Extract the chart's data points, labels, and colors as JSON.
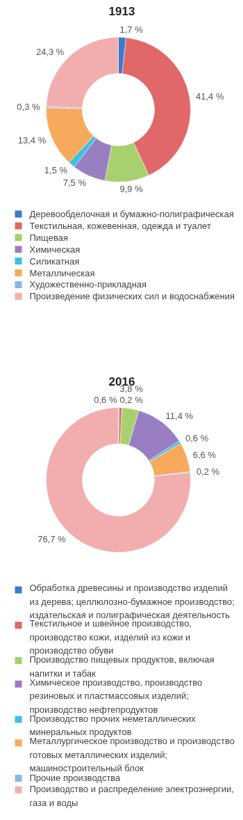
{
  "chart_data": [
    {
      "type": "donut",
      "title": "1913",
      "categories": [
        "Деревообделочная и бумажно-полиграфическая",
        "Текстильная, кожевенная, одежда и туалет",
        "Пищевая",
        "Химическая",
        "Силикатная",
        "Металлическая",
        "Художественно-прикладная",
        "Произведение физических сил и водоснабжения"
      ],
      "values": [
        1.7,
        41.4,
        9.9,
        7.5,
        1.5,
        13.4,
        0.3,
        24.3
      ],
      "value_labels": [
        "1,7 %",
        "41,4 %",
        "9,9 %",
        "7,5 %",
        "1,5 %",
        "13,4 %",
        "0,3 %",
        "24,3 %"
      ],
      "colors": [
        "#3a7cc8",
        "#e06868",
        "#a9d06e",
        "#9a7ec2",
        "#3ec0e6",
        "#f7a95c",
        "#8fb4e3",
        "#f2aeae"
      ],
      "legend": "bottom"
    },
    {
      "type": "donut",
      "title": "2016",
      "categories": [
        "Обработка древесины и производство изделий из дерева; целлюлозно-бумажное производство; издательская и полиграфическая деятельность",
        "Текстильное и швейное производство, производство кожи, изделий из кожи и производство обуви",
        "Производство пищевых продуктов, включая напитки и табак",
        "Химическое производство, производство резиновых и пластмассовых изделий; производство нефтепродуктов",
        "Производство прочих неметаллических минеральных продуктов",
        "Металлургическое производство и производство готовых металлических изделий; машиностроительный блок",
        "Прочие производства",
        "Производство и распределение электроэнергии, газа и воды"
      ],
      "values": [
        0.2,
        0.6,
        3.8,
        11.4,
        0.6,
        6.6,
        0.2,
        76.7
      ],
      "value_labels": [
        "0,2 %",
        "0,6 %",
        "3,8 %",
        "11,4 %",
        "0,6 %",
        "6,6 %",
        "0,2 %",
        "76,7 %"
      ],
      "colors": [
        "#3a7cc8",
        "#e06868",
        "#a9d06e",
        "#9a7ec2",
        "#3ec0e6",
        "#f7a95c",
        "#8fb4e3",
        "#f2aeae"
      ],
      "legend": "bottom"
    }
  ]
}
